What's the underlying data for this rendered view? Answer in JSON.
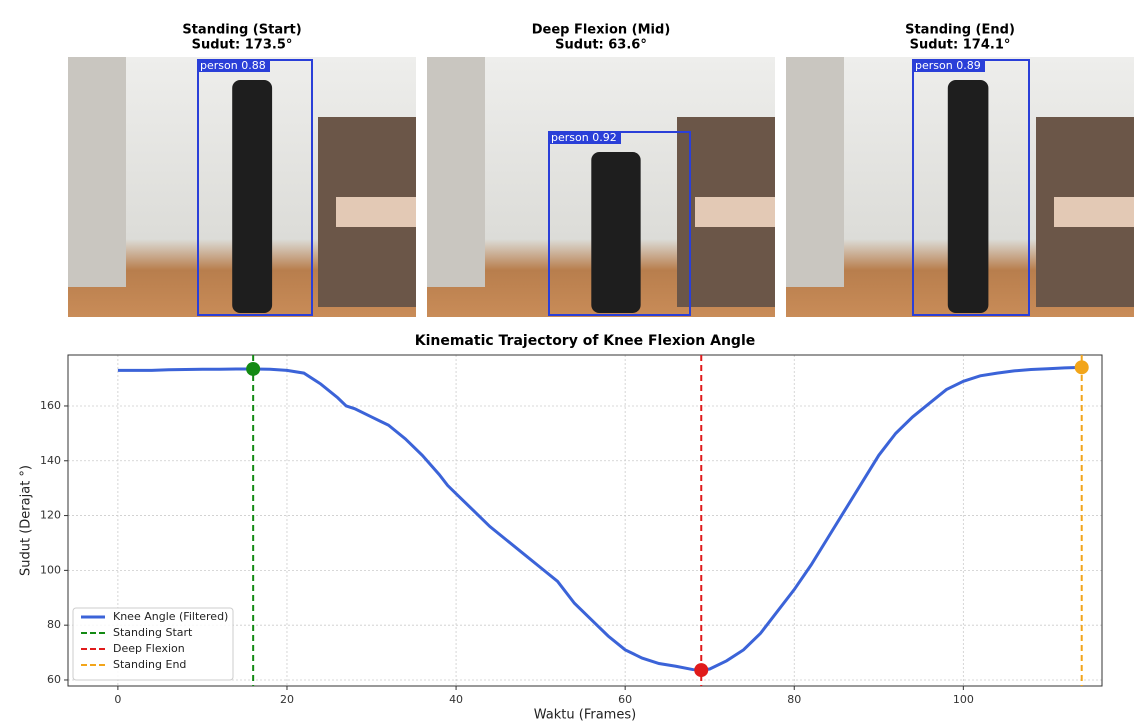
{
  "panels": [
    {
      "title": "Standing (Start)",
      "subtitle": "Sudut: 173.5°",
      "detection": "person 0.88"
    },
    {
      "title": "Deep Flexion (Mid)",
      "subtitle": "Sudut: 63.6°",
      "detection": "person 0.92"
    },
    {
      "title": "Standing (End)",
      "subtitle": "Sudut: 174.1°",
      "detection": "person 0.89"
    }
  ],
  "chart_data": {
    "type": "line",
    "title": "Kinematic Trajectory of Knee Flexion Angle",
    "x_label": "Waktu (Frames)",
    "y_label": "Sudut (Derajat °)",
    "xlim": [
      -5.9,
      116.4
    ],
    "xticks": [
      0,
      20,
      40,
      60,
      80,
      100
    ],
    "ylim": [
      57.8,
      178.6
    ],
    "yticks": [
      60,
      80,
      100,
      120,
      140,
      160
    ],
    "grid": true,
    "series": [
      {
        "name": "Knee Angle (Filtered)",
        "color": "#3b63d8",
        "x": [
          0,
          2,
          4,
          6,
          8,
          10,
          12,
          14,
          16,
          18,
          20,
          22,
          24,
          26,
          27,
          28,
          30,
          32,
          34,
          36,
          38,
          39,
          40,
          42,
          44,
          46,
          48,
          50,
          52,
          54,
          56,
          58,
          60,
          62,
          64,
          66,
          68,
          69,
          70,
          72,
          74,
          76,
          78,
          80,
          82,
          84,
          86,
          88,
          90,
          92,
          94,
          96,
          98,
          100,
          102,
          104,
          106,
          108,
          110,
          112,
          114
        ],
        "values": [
          173,
          173,
          173,
          173.2,
          173.3,
          173.4,
          173.4,
          173.5,
          173.5,
          173.4,
          173,
          172,
          168,
          163,
          160,
          159,
          156,
          153,
          148,
          142,
          135,
          131,
          128,
          122,
          116,
          111,
          106,
          101,
          96,
          88,
          82,
          76,
          71,
          68,
          66,
          65,
          63.8,
          63.6,
          64,
          67,
          71,
          77,
          85,
          93,
          102,
          112,
          122,
          132,
          142,
          150,
          156,
          161,
          166,
          169,
          171,
          172,
          172.8,
          173.3,
          173.6,
          173.9,
          174.1
        ]
      }
    ],
    "events": [
      {
        "name": "Standing Start",
        "x": 16,
        "y": 173.5,
        "color": "#138a13"
      },
      {
        "name": "Deep Flexion",
        "x": 69,
        "y": 63.6,
        "color": "#e01b1b"
      },
      {
        "name": "Standing End",
        "x": 114,
        "y": 174.1,
        "color": "#f2a51a"
      }
    ],
    "legend": "lower left"
  }
}
